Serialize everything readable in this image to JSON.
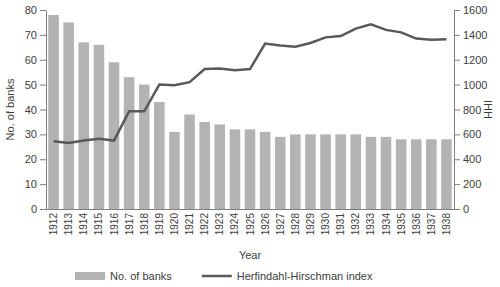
{
  "chart_data": {
    "type": "bar",
    "x_label": "Year",
    "y_label": "No. of banks",
    "y2_label": "HHI",
    "categories": [
      "1912",
      "1913",
      "1914",
      "1915",
      "1916",
      "1917",
      "1918",
      "1919",
      "1920",
      "1921",
      "1922",
      "1923",
      "1924",
      "1925",
      "1926",
      "1927",
      "1928",
      "1929",
      "1930",
      "1931",
      "1932",
      "1933",
      "1934",
      "1935",
      "1936",
      "1937",
      "1938"
    ],
    "series": [
      {
        "name": "No. of banks",
        "type": "bar",
        "color": "#b3b3b3",
        "values": [
          78,
          75,
          67,
          66,
          59,
          53,
          50,
          43,
          31,
          38,
          35,
          34,
          32,
          32,
          31,
          29,
          30,
          30,
          30,
          30,
          30,
          29,
          29,
          28,
          28,
          28,
          28
        ]
      },
      {
        "name": "Herfindahl-Hirschman index",
        "type": "line",
        "color": "#595959",
        "axis": "y2",
        "values": [
          545,
          530,
          550,
          565,
          550,
          785,
          785,
          1000,
          995,
          1020,
          1125,
          1130,
          1115,
          1125,
          1330,
          1315,
          1305,
          1335,
          1380,
          1390,
          1450,
          1485,
          1440,
          1420,
          1370,
          1360,
          1365
        ]
      }
    ],
    "ylim": [
      0,
      80
    ],
    "yticks": [
      0,
      10,
      20,
      30,
      40,
      50,
      60,
      70,
      80
    ],
    "y2lim": [
      0,
      1600
    ],
    "y2ticks": [
      0,
      200,
      400,
      600,
      800,
      1000,
      1200,
      1400,
      1600
    ],
    "grid": false,
    "legend": "bottom"
  }
}
